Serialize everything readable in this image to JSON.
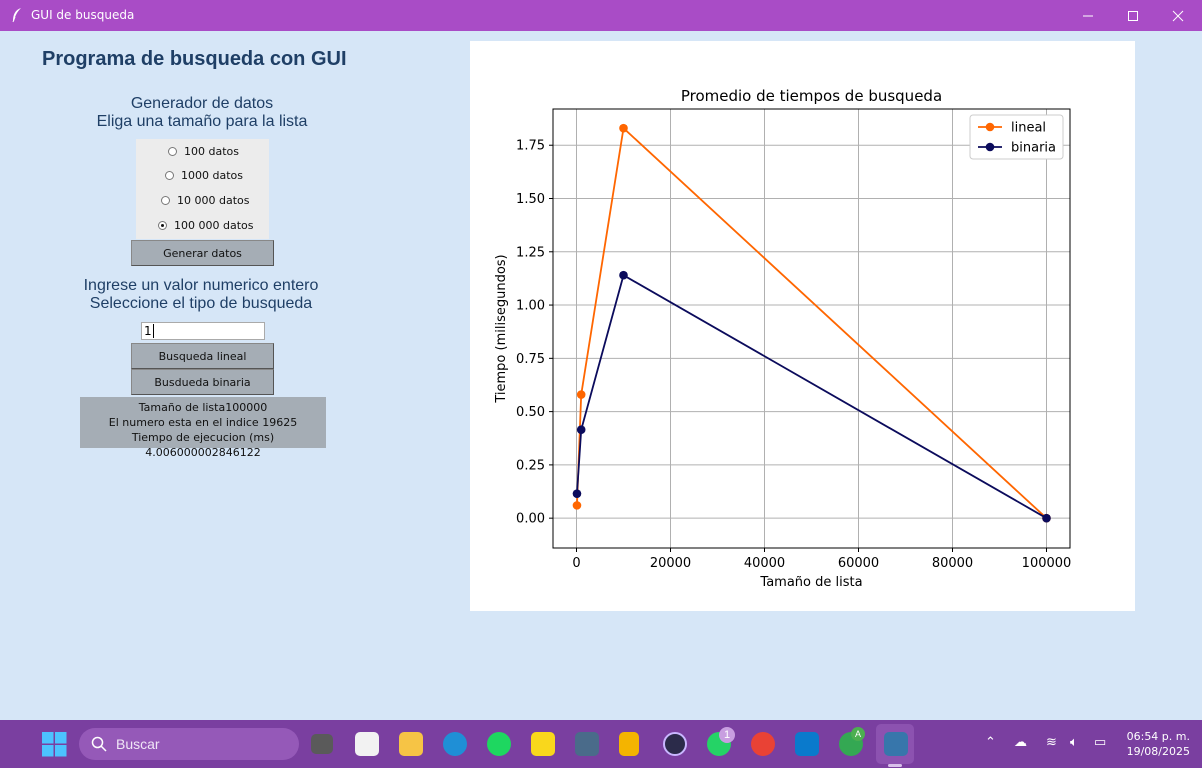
{
  "window": {
    "title": "GUI de busqueda"
  },
  "app": {
    "heading": "Programa de busqueda con GUI",
    "generator_line1": "Generador de datos",
    "generator_line2": "Eliga una tamaño para la lista",
    "radio_options": [
      "100 datos",
      "1000 datos",
      "10 000 datos",
      "100 000 datos"
    ],
    "selected_option": "100 000 datos",
    "generate_button": "Generar datos",
    "search_line1": "Ingrese un valor numerico entero",
    "search_line2": "Seleccione el tipo de busqueda",
    "search_value": "1",
    "linear_button": "Busqueda lineal",
    "binary_button": "Busdueda binaria",
    "result_line1": "Tamaño de lista100000",
    "result_line2": "El numero esta en el indice 19625",
    "result_line3": "Tiempo de ejecucion (ms) 4.006000002846122"
  },
  "chart_data": {
    "type": "line",
    "title": "Promedio de tiempos de busqueda",
    "xlabel": "Tamaño de lista",
    "ylabel": "Tiempo (milisegundos)",
    "xlim": [
      -5000,
      105000
    ],
    "ylim": [
      -0.14,
      1.92
    ],
    "xticks": [
      0,
      20000,
      40000,
      60000,
      80000,
      100000
    ],
    "xtick_labels": [
      "0",
      "20000",
      "40000",
      "60000",
      "80000",
      "100000"
    ],
    "yticks": [
      0,
      0.25,
      0.5,
      0.75,
      1.0,
      1.25,
      1.5,
      1.75
    ],
    "ytick_labels": [
      "0.00",
      "0.25",
      "0.50",
      "0.75",
      "1.00",
      "1.25",
      "1.50",
      "1.75"
    ],
    "grid": true,
    "legend_position": "top-right",
    "series": [
      {
        "name": "lineal",
        "color": "#ff6600",
        "x": [
          100,
          1000,
          10000,
          100000
        ],
        "y": [
          0.06,
          0.58,
          1.83,
          0.0
        ]
      },
      {
        "name": "binaria",
        "color": "#0b0b5c",
        "x": [
          100,
          1000,
          10000,
          100000
        ],
        "y": [
          0.115,
          0.415,
          1.14,
          0.0
        ]
      }
    ]
  },
  "taskbar": {
    "search_placeholder": "Buscar",
    "time": "06:54 p. m.",
    "date": "19/08/2025",
    "whatsapp_badge": "1",
    "chrome_badge": "A"
  }
}
